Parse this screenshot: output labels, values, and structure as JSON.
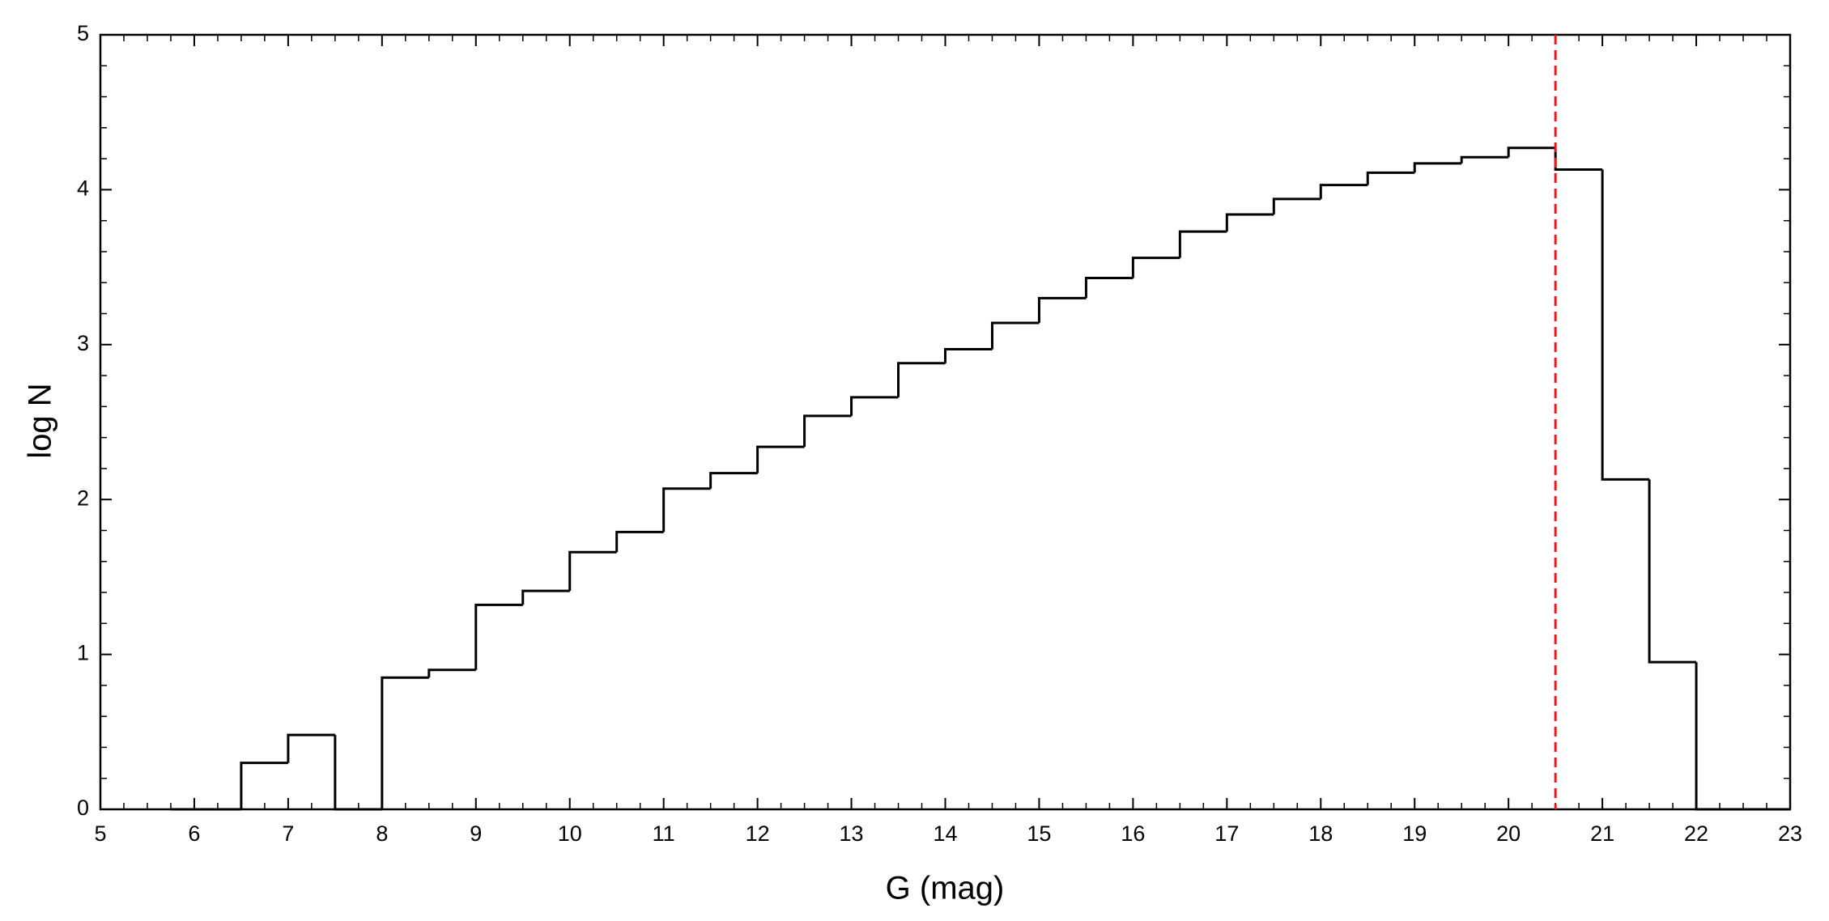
{
  "chart_data": {
    "type": "histogram",
    "xlabel": "G (mag)",
    "ylabel": "log N",
    "bins": [
      5.75,
      6.5,
      7,
      7.5,
      8,
      8.5,
      9,
      9.5,
      10,
      10.5,
      11,
      11.5,
      12,
      12.5,
      13,
      13.5,
      14,
      14.5,
      15,
      15.5,
      16,
      16.5,
      17,
      17.5,
      18,
      18.5,
      19,
      19.5,
      20,
      20.5,
      21,
      21.5,
      22,
      22.5,
      23
    ],
    "values": [
      0,
      0.3,
      0.48,
      0,
      0.85,
      0.9,
      1.32,
      1.41,
      1.66,
      1.79,
      2.07,
      2.17,
      2.34,
      2.54,
      2.66,
      2.88,
      2.97,
      3.14,
      3.3,
      3.43,
      3.56,
      3.73,
      3.84,
      3.94,
      4.03,
      4.11,
      4.17,
      4.21,
      4.27,
      4.13,
      2.13,
      0.95,
      0,
      0
    ],
    "color": "#000000",
    "xlim": [
      5,
      23
    ],
    "xticks": [
      5,
      6,
      7,
      8,
      9,
      10,
      11,
      12,
      13,
      14,
      15,
      16,
      17,
      18,
      19,
      20,
      21,
      22,
      23
    ],
    "ylim": [
      0,
      5
    ],
    "yticks": [
      0,
      1,
      2,
      3,
      4,
      5
    ],
    "grid": false,
    "reference_line": {
      "x": 20.5,
      "color": "#e8191c",
      "style": "dashed"
    }
  }
}
